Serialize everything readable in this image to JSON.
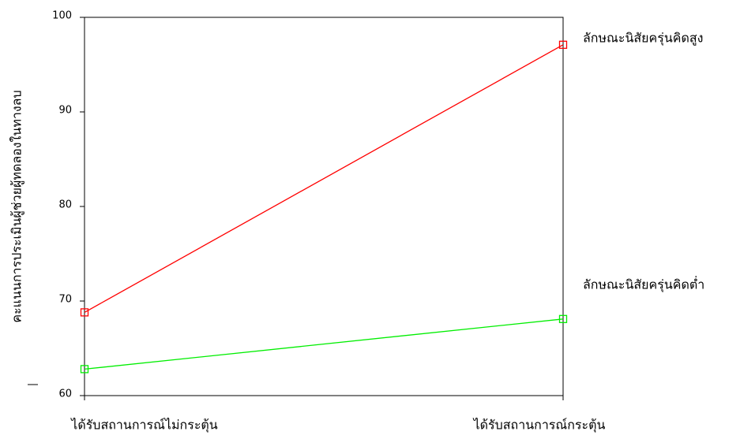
{
  "chart_data": {
    "type": "line",
    "ylabel": "คะแนนการประเมินผู้ช่วยผู้ทดลองในทางลบ",
    "categories": [
      "ได้รับสถานการณ์ไม่กระตุ้น",
      "ได้รับสถานการณ์กระตุ้น"
    ],
    "series": [
      {
        "name": "ลักษณะนิสัยครุ่นคิดสูง",
        "color": "#ff0000",
        "values": [
          68.8,
          97.1
        ]
      },
      {
        "name": "ลักษณะนิสัยครุ่นคิดต่ำ",
        "color": "#00ee00",
        "values": [
          62.8,
          68.1
        ]
      }
    ],
    "ylim": [
      60,
      100
    ],
    "yticks": [
      60,
      70,
      80,
      90,
      100
    ]
  }
}
